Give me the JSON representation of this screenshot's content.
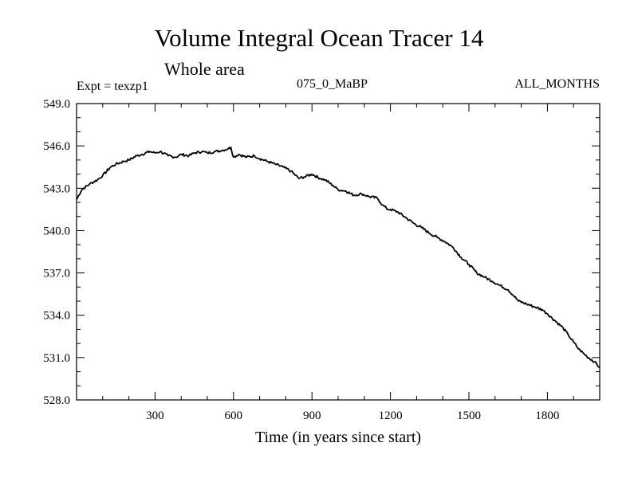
{
  "header": {
    "title": "Volume Integral Ocean Tracer 14",
    "subtitle": "Whole area",
    "experiment": "Expt = texzp1",
    "period": "075_0_MaBP",
    "months": "ALL_MONTHS"
  },
  "chart_data": {
    "type": "line",
    "title": "Volume Integral Ocean Tracer 14",
    "subtitle": "Whole area",
    "xlabel": "Time (in years since start)",
    "ylabel": "",
    "xlim": [
      0,
      2000
    ],
    "ylim": [
      528.0,
      549.0
    ],
    "xticks": [
      300,
      600,
      900,
      1200,
      1500,
      1800
    ],
    "xtick_labels": [
      "300",
      "600",
      "900",
      "1200",
      "1500",
      "1800"
    ],
    "yticks": [
      528.0,
      531.0,
      534.0,
      537.0,
      540.0,
      543.0,
      546.0,
      549.0
    ],
    "ytick_labels": [
      "528.0",
      "531.0",
      "534.0",
      "537.0",
      "540.0",
      "543.0",
      "546.0",
      "549.0"
    ],
    "grid": false,
    "series": [
      {
        "name": "Tracer 14",
        "x": [
          0,
          20,
          50,
          80,
          100,
          130,
          150,
          180,
          200,
          230,
          250,
          280,
          300,
          320,
          350,
          380,
          400,
          430,
          450,
          480,
          500,
          530,
          560,
          580,
          590,
          600,
          620,
          650,
          680,
          700,
          730,
          760,
          790,
          820,
          850,
          870,
          900,
          930,
          950,
          980,
          1000,
          1030,
          1060,
          1090,
          1120,
          1150,
          1170,
          1190,
          1200,
          1230,
          1260,
          1290,
          1320,
          1350,
          1380,
          1410,
          1440,
          1470,
          1500,
          1530,
          1560,
          1590,
          1620,
          1650,
          1670,
          1690,
          1720,
          1750,
          1780,
          1800,
          1830,
          1860,
          1880,
          1900,
          1920,
          1950,
          1980,
          2000
        ],
        "y": [
          542.2,
          542.9,
          543.3,
          543.6,
          543.9,
          544.5,
          544.7,
          544.9,
          545.0,
          545.3,
          545.4,
          545.6,
          545.5,
          545.6,
          545.3,
          545.2,
          545.4,
          545.3,
          545.5,
          545.6,
          545.5,
          545.6,
          545.7,
          545.8,
          545.9,
          545.2,
          545.4,
          545.2,
          545.3,
          545.1,
          544.9,
          544.7,
          544.5,
          544.2,
          543.7,
          543.8,
          544.0,
          543.7,
          543.6,
          543.2,
          542.9,
          542.8,
          542.5,
          542.6,
          542.4,
          542.3,
          541.8,
          541.5,
          541.5,
          541.3,
          540.9,
          540.5,
          540.2,
          539.8,
          539.5,
          539.2,
          538.8,
          538.1,
          537.6,
          537.0,
          536.7,
          536.4,
          536.1,
          535.8,
          535.4,
          535.0,
          534.8,
          534.6,
          534.4,
          534.1,
          533.6,
          533.1,
          532.6,
          532.1,
          531.6,
          531.1,
          530.7,
          530.3
        ]
      }
    ]
  }
}
